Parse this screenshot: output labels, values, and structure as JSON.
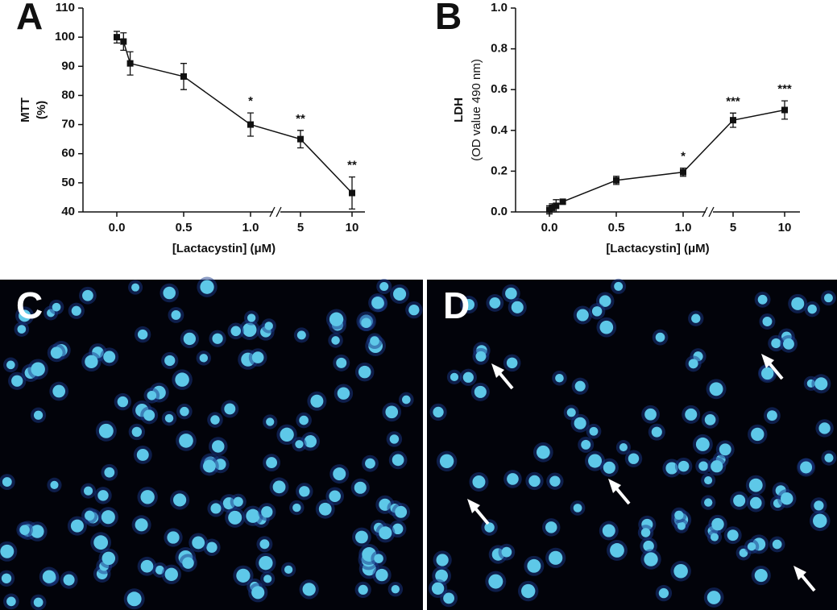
{
  "chart_data": [
    {
      "type": "line",
      "label": "A",
      "ylabel": "MTT",
      "ylabel2": "(%)",
      "xlabel": "[Lactacystin] (μM)",
      "x": [
        0,
        0.05,
        0.1,
        0.5,
        1,
        5,
        10
      ],
      "values": [
        100,
        98.5,
        91,
        86.5,
        70,
        65,
        46.5
      ],
      "errors": [
        2,
        3,
        4,
        4.5,
        4,
        3,
        5.5
      ],
      "annotations": [
        null,
        null,
        null,
        null,
        "*",
        "**",
        "**"
      ],
      "ylim": [
        40,
        110
      ],
      "yticks": [
        40,
        50,
        60,
        70,
        80,
        90,
        100,
        110
      ],
      "xticks": [
        {
          "value": 0,
          "label": "0.0"
        },
        0.5,
        {
          "value": 1,
          "label": "1.0"
        },
        5,
        10
      ],
      "xbreak": [
        1,
        5
      ],
      "color": "#111111"
    },
    {
      "type": "line",
      "label": "B",
      "ylabel": "LDH",
      "ylabel2": "(OD value 490 nm)",
      "xlabel": "[Lactacystin] (μM)",
      "x": [
        0,
        0.02,
        0.05,
        0.1,
        0.5,
        1,
        5,
        10
      ],
      "values": [
        0.01,
        0.02,
        0.03,
        0.05,
        0.155,
        0.195,
        0.45,
        0.5
      ],
      "errors": [
        0.02,
        0.02,
        0.03,
        0.01,
        0.02,
        0.02,
        0.035,
        0.045
      ],
      "annotations": [
        null,
        null,
        null,
        null,
        null,
        "*",
        "***",
        "***"
      ],
      "ylim": [
        0,
        1
      ],
      "yticks": [
        {
          "value": 0,
          "label": "0.0"
        },
        0.2,
        0.4,
        0.6,
        0.8,
        {
          "value": 1,
          "label": "1.0"
        }
      ],
      "xticks": [
        {
          "value": 0,
          "label": "0.0"
        },
        0.5,
        {
          "value": 1,
          "label": "1.0"
        },
        5,
        10
      ],
      "xbreak": [
        1,
        5
      ],
      "color": "#111111"
    }
  ],
  "images": [
    {
      "label": "C"
    },
    {
      "label": "D"
    }
  ]
}
